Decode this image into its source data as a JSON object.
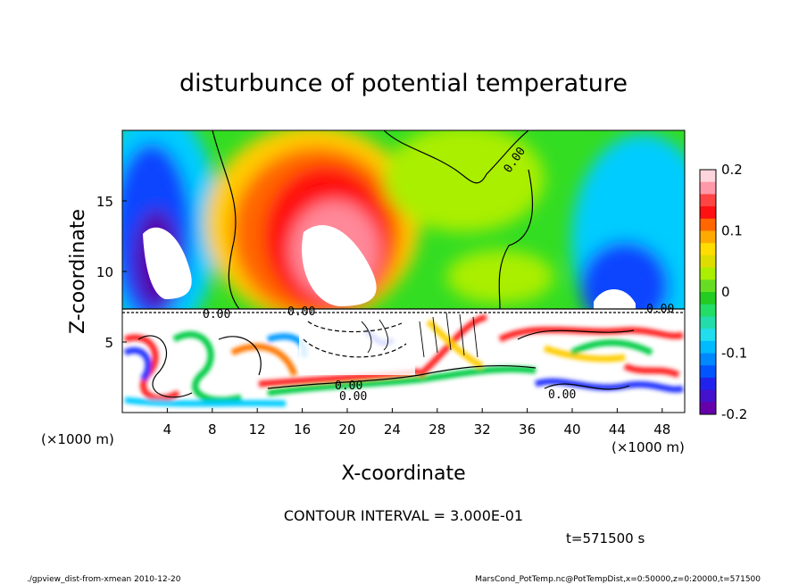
{
  "chart_data": {
    "type": "heatmap",
    "title": "disturbunce of potential temperature",
    "xlabel": "X-coordinate",
    "ylabel": "Z-coordinate",
    "x_unit": "(×1000 m)",
    "y_unit": "(×1000 m)",
    "xlim": [
      0,
      50
    ],
    "ylim": [
      0,
      20
    ],
    "x_ticks": [
      "4",
      "8",
      "12",
      "16",
      "20",
      "24",
      "28",
      "32",
      "36",
      "40",
      "44",
      "48"
    ],
    "y_ticks": [
      "5",
      "10",
      "15"
    ],
    "colorbar": {
      "range": [
        -0.2,
        0.2
      ],
      "ticks": [
        "0.2",
        "0.1",
        "0",
        "-0.1",
        "-0.2"
      ]
    },
    "contour_labels": [
      "0.00",
      "0.00",
      "0.00",
      "0.00",
      "0.00",
      "0.00",
      "0.00"
    ],
    "contour_interval_text": "CONTOUR INTERVAL = 3.000E-01",
    "time_text": "t=571500 s",
    "footer_left": "./gpview_dist-from-xmean  2010-12-20",
    "footer_right": "MarsCond_PotTemp.nc@PotTempDist,x=0:50000,z=0:20000,t=571500"
  }
}
